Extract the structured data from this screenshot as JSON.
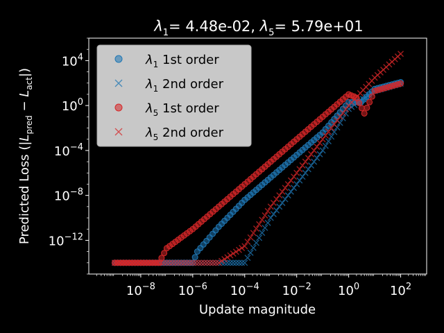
{
  "chart_data": {
    "type": "scatter",
    "title": "λ1= 4.48e-02, λ5= 5.79e+01",
    "xlabel": "Update magnitude",
    "ylabel": "Predicted Loss (|L_pred − L_act|)",
    "xscale": "log",
    "yscale": "log",
    "xlim": [
      1e-10,
      1000.0
    ],
    "ylim": [
      1e-15,
      1000000.0
    ],
    "xticks": [
      {
        "exp": -8,
        "label": "10",
        "sup": "−8"
      },
      {
        "exp": -6,
        "label": "10",
        "sup": "−6"
      },
      {
        "exp": -4,
        "label": "10",
        "sup": "−4"
      },
      {
        "exp": -2,
        "label": "10",
        "sup": "−2"
      },
      {
        "exp": 0,
        "label": "10",
        "sup": "0"
      },
      {
        "exp": 2,
        "label": "10",
        "sup": "2"
      }
    ],
    "yticks": [
      {
        "exp": -12,
        "label": "10",
        "sup": "−12"
      },
      {
        "exp": -8,
        "label": "10",
        "sup": "−8"
      },
      {
        "exp": -4,
        "label": "10",
        "sup": "−4"
      },
      {
        "exp": 0,
        "label": "10",
        "sup": "0"
      },
      {
        "exp": 4,
        "label": "10",
        "sup": "4"
      }
    ],
    "grid": false,
    "legend_position": "upper-left",
    "series": [
      {
        "name": "λ1 1st order",
        "marker": "circle",
        "color": "#1f77b4",
        "points": [
          [
            1e-09,
            1e-14
          ],
          [
            1e-08,
            1e-14
          ],
          [
            1e-07,
            1e-14
          ],
          [
            1e-06,
            1e-14
          ],
          [
            1.5e-06,
            1e-13
          ],
          [
            1e-05,
            1.6e-11
          ],
          [
            0.0001,
            4e-09
          ],
          [
            0.001,
            4e-07
          ],
          [
            0.01,
            4e-05
          ],
          [
            0.1,
            0.004
          ],
          [
            1,
            2
          ],
          [
            3,
            2
          ],
          [
            10,
            30
          ],
          [
            100,
            120
          ]
        ]
      },
      {
        "name": "λ1 2nd order",
        "marker": "x",
        "color": "#1f77b4",
        "points": [
          [
            1e-09,
            1e-14
          ],
          [
            1e-07,
            1e-14
          ],
          [
            1e-05,
            1e-14
          ],
          [
            0.0001,
            1e-14
          ],
          [
            0.001,
            1e-10
          ],
          [
            0.01,
            1e-07
          ],
          [
            0.1,
            0.0001
          ],
          [
            1,
            0.5
          ],
          [
            10,
            20
          ],
          [
            100,
            90
          ]
        ]
      },
      {
        "name": "λ5 1st order",
        "marker": "circle",
        "color": "#d62728",
        "points": [
          [
            1e-09,
            1e-14
          ],
          [
            1e-08,
            1e-14
          ],
          [
            5e-08,
            1e-14
          ],
          [
            1e-07,
            2e-13
          ],
          [
            1e-06,
            1e-11
          ],
          [
            1e-05,
            1e-09
          ],
          [
            0.0001,
            1e-07
          ],
          [
            0.001,
            1e-05
          ],
          [
            0.01,
            0.001
          ],
          [
            0.1,
            0.1
          ],
          [
            1,
            10
          ],
          [
            2,
            5
          ],
          [
            4,
            0.2
          ],
          [
            10,
            20
          ],
          [
            100,
            90
          ]
        ]
      },
      {
        "name": "λ5 2nd order",
        "marker": "x",
        "color": "#d62728",
        "points": [
          [
            1e-09,
            1e-14
          ],
          [
            1e-07,
            1e-14
          ],
          [
            1e-05,
            1e-14
          ],
          [
            0.0001,
            3e-13
          ],
          [
            0.001,
            1e-09
          ],
          [
            0.01,
            1e-06
          ],
          [
            0.1,
            0.001
          ],
          [
            1,
            1
          ],
          [
            10,
            300
          ],
          [
            100,
            40000
          ]
        ]
      }
    ],
    "legend": [
      {
        "name": "λ1 1st order",
        "sub": "1",
        "text": " 1st order",
        "marker": "circle",
        "color": "#1f77b4"
      },
      {
        "name": "λ1 2nd order",
        "sub": "1",
        "text": " 2nd order",
        "marker": "x",
        "color": "#1f77b4"
      },
      {
        "name": "λ5 1st order",
        "sub": "5",
        "text": " 1st order",
        "marker": "circle",
        "color": "#d62728"
      },
      {
        "name": "λ5 2nd order",
        "sub": "5",
        "text": " 2nd order",
        "marker": "x",
        "color": "#d62728"
      }
    ]
  }
}
